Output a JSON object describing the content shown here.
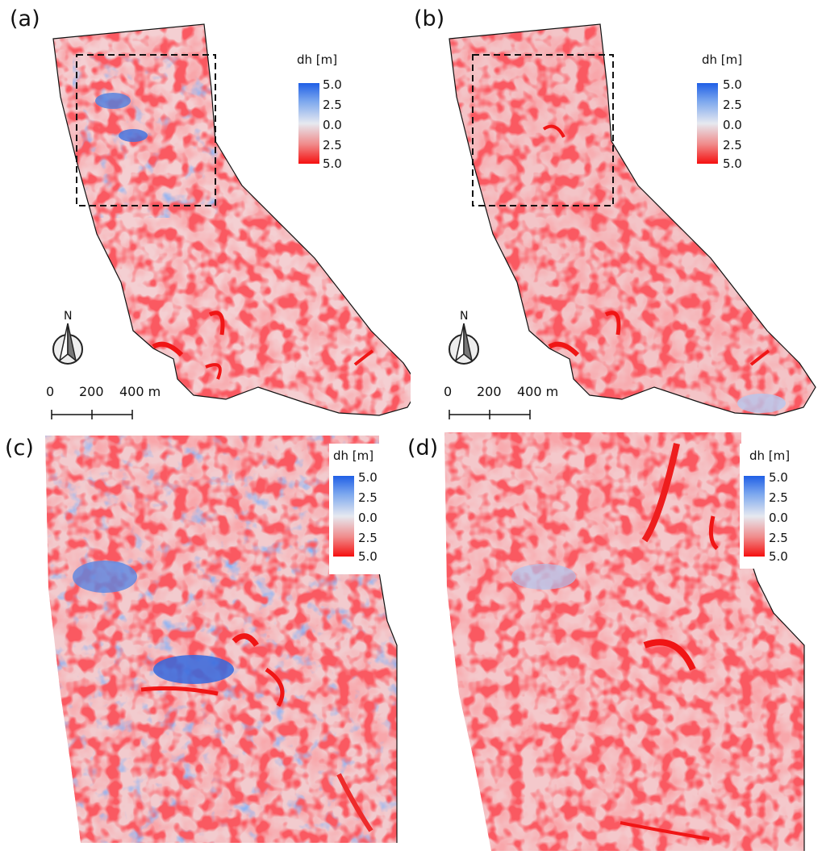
{
  "panels": [
    {
      "id": "a",
      "label": "(a)"
    },
    {
      "id": "b",
      "label": "(b)"
    },
    {
      "id": "c",
      "label": "(c)"
    },
    {
      "id": "d",
      "label": "(d)"
    }
  ],
  "legend": {
    "title": "dh [m]",
    "ticks": [
      "5.0",
      "2.5",
      "0.0",
      "2.5",
      "5.0"
    ],
    "colors": {
      "top": "#1f5fe6",
      "middle": "#e6e9f0",
      "bottom": "#f51010"
    }
  },
  "north_arrow": {
    "label": "N"
  },
  "scale_bar": {
    "labels": [
      "0",
      "200",
      "400 m"
    ]
  }
}
